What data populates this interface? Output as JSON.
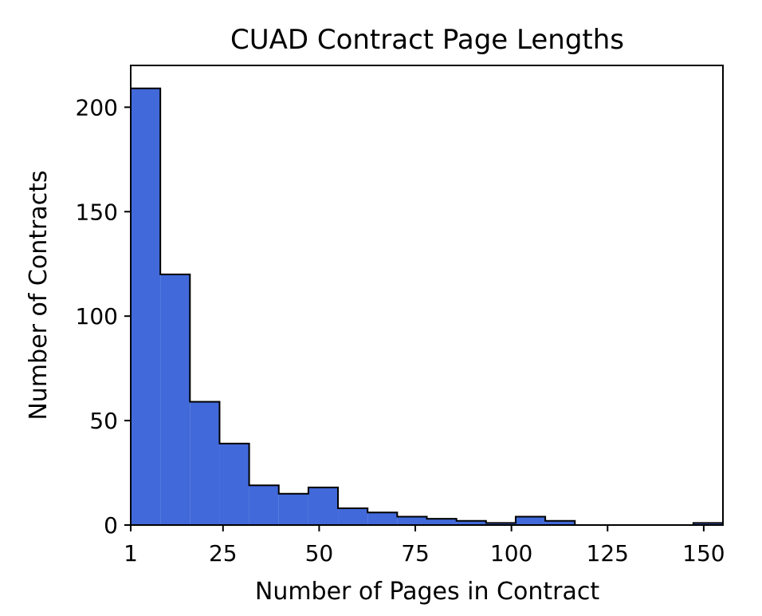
{
  "chart_data": {
    "type": "bar",
    "title": "CUAD Contract Page Lengths",
    "xlabel": "Number of Pages in Contract",
    "ylabel": "Number of Contracts",
    "xlim": [
      1,
      155
    ],
    "ylim": [
      0,
      220
    ],
    "xticks": [
      1,
      25,
      50,
      75,
      100,
      125,
      150
    ],
    "yticks": [
      0,
      50,
      100,
      150,
      200
    ],
    "bins": [
      {
        "start": 1,
        "end": 8.7,
        "count": 209
      },
      {
        "start": 8.7,
        "end": 16.4,
        "count": 120
      },
      {
        "start": 16.4,
        "end": 24.1,
        "count": 59
      },
      {
        "start": 24.1,
        "end": 31.8,
        "count": 39
      },
      {
        "start": 31.8,
        "end": 39.5,
        "count": 19
      },
      {
        "start": 39.5,
        "end": 47.2,
        "count": 15
      },
      {
        "start": 47.2,
        "end": 54.9,
        "count": 18
      },
      {
        "start": 54.9,
        "end": 62.6,
        "count": 8
      },
      {
        "start": 62.6,
        "end": 70.3,
        "count": 6
      },
      {
        "start": 70.3,
        "end": 78.0,
        "count": 4
      },
      {
        "start": 78.0,
        "end": 85.7,
        "count": 3
      },
      {
        "start": 85.7,
        "end": 93.4,
        "count": 2
      },
      {
        "start": 93.4,
        "end": 101.1,
        "count": 1
      },
      {
        "start": 101.1,
        "end": 108.8,
        "count": 4
      },
      {
        "start": 108.8,
        "end": 116.5,
        "count": 2
      },
      {
        "start": 116.5,
        "end": 124.2,
        "count": 0
      },
      {
        "start": 124.2,
        "end": 131.9,
        "count": 0
      },
      {
        "start": 131.9,
        "end": 139.6,
        "count": 0
      },
      {
        "start": 139.6,
        "end": 147.3,
        "count": 0
      },
      {
        "start": 147.3,
        "end": 155.0,
        "count": 1
      }
    ],
    "bar_color": "#4169d9",
    "edge_color": "#000000",
    "grid": false
  }
}
